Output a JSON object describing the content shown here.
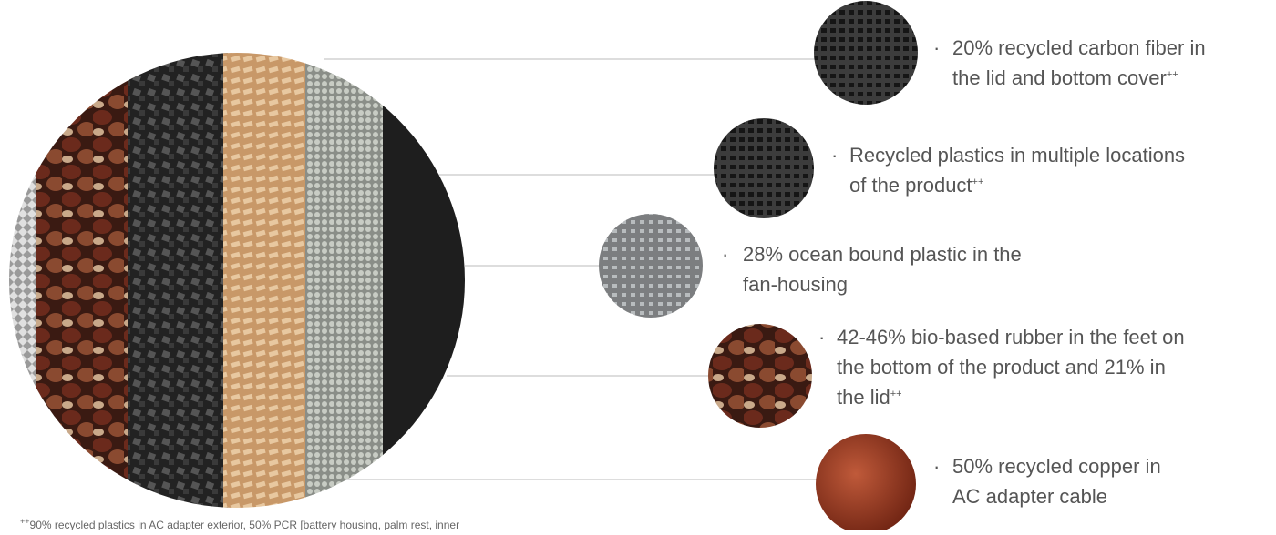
{
  "items": [
    {
      "lines": [
        "20% recycled carbon fiber in",
        "the lid and bottom cover"
      ],
      "sup": "++"
    },
    {
      "lines": [
        "Recycled plastics in multiple locations",
        "of the product"
      ],
      "sup": "++"
    },
    {
      "lines": [
        "28% ocean bound plastic in the",
        "fan-housing"
      ]
    },
    {
      "lines": [
        "42-46% bio-based rubber in the feet on",
        "the bottom of the product and 21% in",
        "the lid"
      ],
      "sup": "++"
    },
    {
      "lines": [
        "50% recycled copper in",
        "AC adapter cable"
      ]
    }
  ],
  "footnote": {
    "sup": "++",
    "text": "90% recycled plastics in AC adapter exterior, 50% PCR [battery housing, palm rest, inner"
  }
}
